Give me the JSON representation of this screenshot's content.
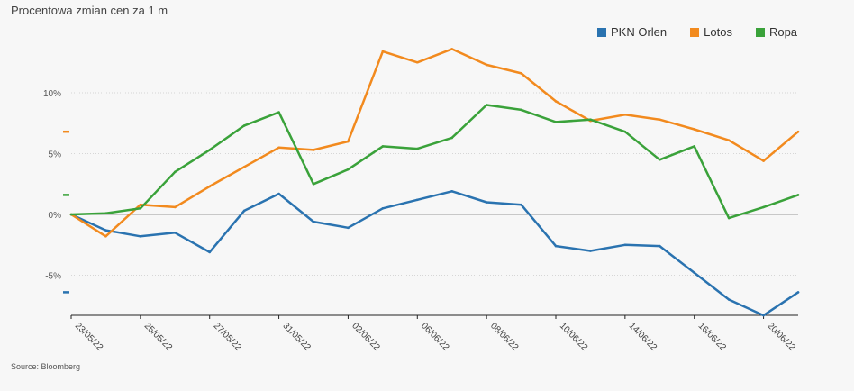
{
  "title": "Procentowa zmian cen za 1 m",
  "source": "Source: Bloomberg",
  "chart_data": {
    "type": "line",
    "title": "Procentowa zmian cen za 1 m",
    "xlabel": "",
    "ylabel": "",
    "ylim": [
      -8.3,
      14
    ],
    "grid": "horizontal",
    "legend_position": "top-right",
    "x": [
      "23/05/22",
      "24/05/22",
      "25/05/22",
      "26/05/22",
      "27/05/22",
      "30/05/22",
      "31/05/22",
      "01/06/22",
      "02/06/22",
      "03/06/22",
      "06/06/22",
      "07/06/22",
      "08/06/22",
      "09/06/22",
      "10/06/22",
      "13/06/22",
      "14/06/22",
      "15/06/22",
      "16/06/22",
      "17/06/22",
      "20/06/22",
      "21/06/22"
    ],
    "x_tick_labels": [
      "23/05/22",
      "25/05/22",
      "27/05/22",
      "31/05/22",
      "02/06/22",
      "06/06/22",
      "08/06/22",
      "10/06/22",
      "14/06/22",
      "16/06/22",
      "20/06/22"
    ],
    "y_ticks": [
      10,
      5,
      0,
      -5
    ],
    "y_tick_labels": [
      "10%",
      "5%",
      "0%",
      "-5%"
    ],
    "series": [
      {
        "name": "PKN Orlen",
        "color": "#2a73b0",
        "values": [
          0,
          -1.3,
          -1.8,
          -1.5,
          -3.1,
          0.3,
          1.7,
          -0.6,
          -1.1,
          0.5,
          1.2,
          1.9,
          1.0,
          0.8,
          -2.6,
          -3.0,
          -2.5,
          -2.6,
          -4.8,
          -7.0,
          -8.3,
          -6.4
        ]
      },
      {
        "name": "Lotos",
        "color": "#f28a1e",
        "values": [
          0,
          -1.8,
          0.8,
          0.6,
          2.3,
          3.9,
          5.5,
          5.3,
          6.0,
          13.4,
          12.5,
          13.6,
          12.3,
          11.6,
          9.3,
          7.7,
          8.2,
          7.8,
          7.0,
          6.1,
          4.4,
          6.8
        ]
      },
      {
        "name": "Ropa",
        "color": "#3aa23a",
        "values": [
          0,
          0.1,
          0.5,
          3.5,
          5.3,
          7.3,
          8.4,
          2.5,
          3.7,
          5.6,
          5.4,
          6.3,
          9.0,
          8.6,
          7.6,
          7.8,
          6.8,
          4.5,
          5.6,
          -0.3,
          0.6,
          1.6
        ]
      }
    ]
  }
}
